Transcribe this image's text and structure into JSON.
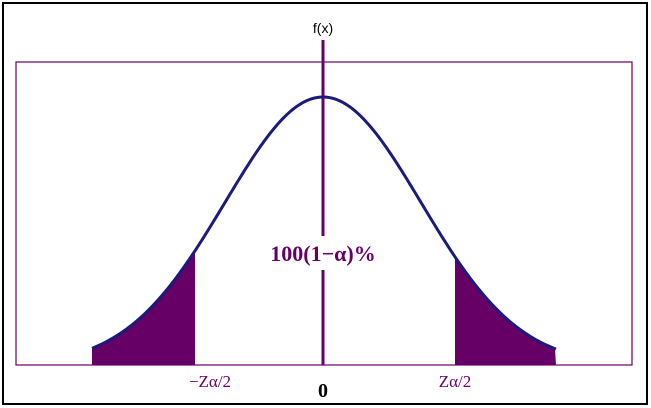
{
  "diagram": {
    "y_axis_label": "f(x)",
    "center_label": "100(1−α)%",
    "left_critical_label": "−Zα/2",
    "origin_label": "0",
    "right_critical_label": "Zα/2",
    "colors": {
      "curve": "#1c1a7a",
      "shading": "#660066",
      "axis": "#660066",
      "label": "#660066",
      "frame": "#660066",
      "outer_border": "#000000"
    }
  }
}
